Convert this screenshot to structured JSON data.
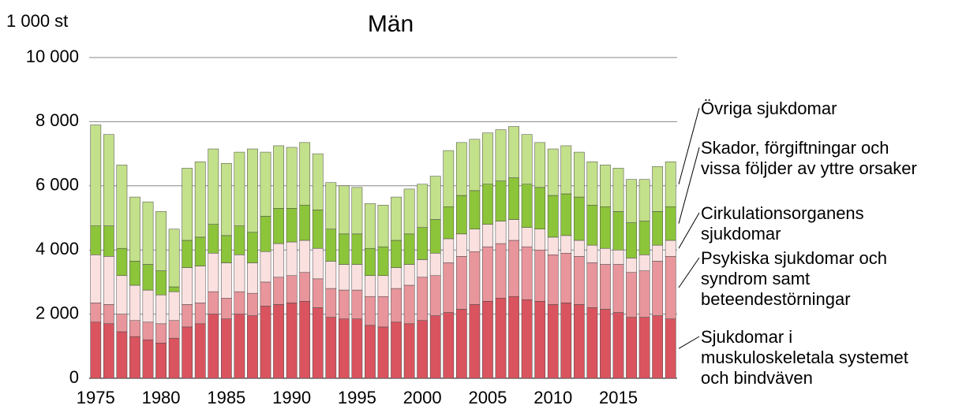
{
  "chart_data": {
    "type": "bar",
    "stacked": true,
    "title": "Män",
    "y_unit": "1 000 st",
    "categories": [
      "1975",
      null,
      null,
      null,
      null,
      "1980",
      null,
      null,
      null,
      null,
      "1985",
      null,
      null,
      null,
      null,
      "1990",
      null,
      null,
      null,
      null,
      "1995",
      null,
      null,
      null,
      null,
      "2000",
      null,
      null,
      null,
      null,
      "2005",
      null,
      null,
      null,
      null,
      "2010",
      null,
      null,
      null,
      null,
      "2015",
      null,
      null,
      null,
      null
    ],
    "series": [
      {
        "name": "Sjukdomar i\nmuskuloskeletala systemet\noch bindväven",
        "color": "#d9545f",
        "values": [
          1750,
          1700,
          1450,
          1300,
          1200,
          1100,
          1250,
          1600,
          1700,
          2000,
          1850,
          2000,
          1950,
          2250,
          2300,
          2350,
          2400,
          2200,
          1900,
          1850,
          1850,
          1650,
          1600,
          1750,
          1700,
          1800,
          1950,
          2050,
          2150,
          2300,
          2400,
          2500,
          2550,
          2450,
          2400,
          2300,
          2350,
          2300,
          2200,
          2150,
          2050,
          1900,
          1900,
          1950,
          1850
        ]
      },
      {
        "name": "Psykiska sjukdomar och\nsyndrom samt\nbeteendestörningar",
        "color": "#e8959b",
        "values": [
          600,
          600,
          550,
          500,
          550,
          600,
          550,
          700,
          650,
          700,
          650,
          700,
          700,
          750,
          850,
          850,
          900,
          900,
          900,
          900,
          900,
          900,
          950,
          1050,
          1200,
          1350,
          1250,
          1550,
          1650,
          1650,
          1700,
          1700,
          1750,
          1650,
          1600,
          1550,
          1550,
          1500,
          1400,
          1400,
          1500,
          1400,
          1450,
          1700,
          1950
        ]
      },
      {
        "name": "Cirkulationsorganens\nsjukdomar",
        "color": "#fbe0e0",
        "values": [
          1500,
          1500,
          1200,
          1100,
          1000,
          900,
          900,
          1150,
          1150,
          1200,
          1100,
          1150,
          950,
          950,
          1050,
          1050,
          1000,
          950,
          850,
          800,
          800,
          650,
          650,
          650,
          650,
          550,
          700,
          750,
          700,
          700,
          700,
          700,
          650,
          600,
          650,
          550,
          550,
          500,
          550,
          500,
          450,
          450,
          500,
          500,
          500
        ]
      },
      {
        "name": "Skador, förgiftningar och\nvissa följder av yttre orsaker",
        "color": "#8cc43a",
        "values": [
          900,
          950,
          850,
          750,
          800,
          750,
          150,
          850,
          900,
          900,
          850,
          900,
          950,
          1100,
          1100,
          1050,
          1100,
          1200,
          1000,
          950,
          950,
          850,
          900,
          850,
          950,
          1000,
          1050,
          1000,
          1200,
          1200,
          1250,
          1250,
          1300,
          1350,
          1300,
          1300,
          1300,
          1350,
          1250,
          1300,
          1200,
          1100,
          1050,
          1050,
          1050
        ]
      },
      {
        "name": "Övriga sjukdomar",
        "color": "#c3e08a",
        "values": [
          3150,
          2850,
          2600,
          2000,
          1950,
          1850,
          1800,
          2250,
          2350,
          2350,
          2250,
          2300,
          2600,
          2000,
          1950,
          1900,
          1950,
          1750,
          1450,
          1500,
          1450,
          1400,
          1300,
          1350,
          1400,
          1350,
          1350,
          1750,
          1650,
          1600,
          1600,
          1600,
          1600,
          1550,
          1400,
          1450,
          1500,
          1400,
          1350,
          1300,
          1350,
          1350,
          1300,
          1400,
          1400
        ]
      }
    ],
    "ylim": [
      0,
      10000
    ],
    "yticks": [
      0,
      {
        "value": 2000,
        "label": "2 000"
      },
      {
        "value": 4000,
        "label": "4 000"
      },
      {
        "value": 6000,
        "label": "6 000"
      },
      {
        "value": 8000,
        "label": "8 000"
      },
      {
        "value": 10000,
        "label": "10 000"
      }
    ],
    "grid": true
  }
}
